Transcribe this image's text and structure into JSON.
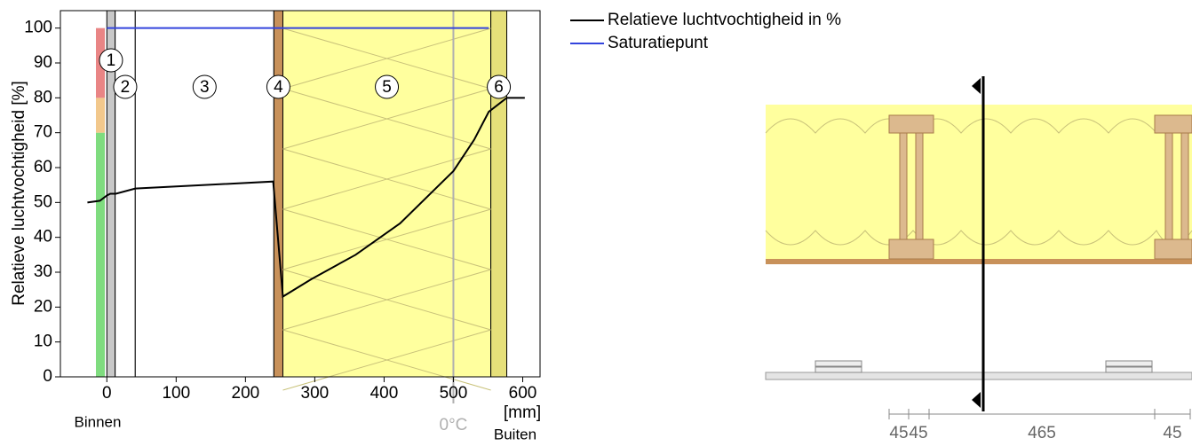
{
  "chart_data": {
    "type": "line",
    "y_label": "Relatieve luchtvochtigheid [%]",
    "x_unit": "[mm]",
    "inside_label": "Binnen",
    "outside_label": "Buiten",
    "xlim": [
      -67,
      625
    ],
    "ylim": [
      0,
      105
    ],
    "xticks": [
      0,
      100,
      200,
      300,
      400,
      500,
      600
    ],
    "yticks": [
      0,
      10,
      20,
      30,
      40,
      50,
      60,
      70,
      80,
      90,
      100
    ],
    "zones": [
      {
        "from": 0,
        "to": 70,
        "color": "#7fdc7f"
      },
      {
        "from": 70,
        "to": 80,
        "color": "#f2c88c"
      },
      {
        "from": 80,
        "to": 100,
        "color": "#e98585"
      }
    ],
    "layers": [
      {
        "label": "1",
        "x0": 0,
        "x1": 12,
        "color": "#c8c8c8"
      },
      {
        "label": "2",
        "x0": 12,
        "x1": 41,
        "color": "#ffffff"
      },
      {
        "label": "3",
        "x0": 41,
        "x1": 241,
        "color": "#ffffff"
      },
      {
        "label": "4",
        "x0": 241,
        "x1": 254,
        "color": "#c8915a"
      },
      {
        "label": "5",
        "x0": 254,
        "x1": 554,
        "color": "#ffff9e"
      },
      {
        "label": "6",
        "x0": 554,
        "x1": 577,
        "color": "#e6e07a"
      }
    ],
    "frost_line": {
      "x": 500,
      "label": "0°C",
      "color": "#b0b0b0"
    },
    "series": [
      {
        "name": "Relatieve luchtvochtigheid in %",
        "color": "#000000",
        "x": [
          -28,
          -10,
          0,
          5,
          13,
          41,
          240,
          254,
          295,
          359,
          423,
          500,
          530,
          551,
          577,
          603
        ],
        "values": [
          50,
          50.5,
          52,
          52.5,
          52.5,
          54,
          56,
          23,
          28,
          35,
          44,
          59,
          68,
          76,
          80,
          80
        ]
      },
      {
        "name": "Saturatiepunt",
        "color": "#3344dd",
        "x": [
          0,
          551
        ],
        "values": [
          100,
          100
        ]
      }
    ]
  },
  "section": {
    "dimensions": [
      "45",
      "45",
      "465",
      "45"
    ]
  }
}
